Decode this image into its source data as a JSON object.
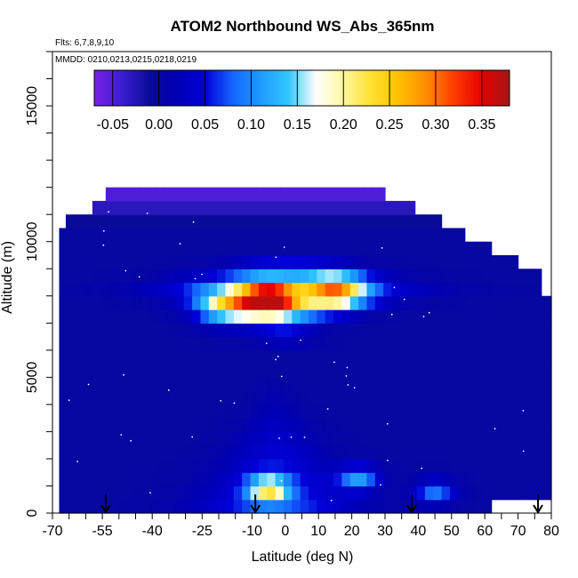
{
  "chart_data": {
    "type": "heatmap",
    "title": "ATOM2 Northbound WS_Abs_365nm",
    "flights_note": "Flts: 6,7,8,9,10",
    "dates_note": "MMDD: 0210,0213,0215,0218,0219",
    "xlabel": "Latitude (deg N)",
    "ylabel": "Altitude (m)",
    "xlim": [
      -70,
      80
    ],
    "ylim": [
      0,
      17000
    ],
    "x_ticks": [
      -70,
      -55,
      -40,
      -25,
      -10,
      0,
      10,
      20,
      30,
      40,
      50,
      60,
      70,
      80
    ],
    "y_ticks": [
      0,
      5000,
      10000,
      15000
    ],
    "colorbar": {
      "ticks": [
        -0.05,
        0.0,
        0.05,
        0.1,
        0.15,
        0.2,
        0.25,
        0.3,
        0.35
      ],
      "tick_labels": [
        "-0.05",
        "0.00",
        "0.05",
        "0.10",
        "0.15",
        "0.20",
        "0.25",
        "0.30",
        "0.35"
      ],
      "range": [
        -0.07,
        0.38
      ]
    },
    "colors": [
      "#7a1fe6",
      "#3a1fcf",
      "#0a0a99",
      "#0000b5",
      "#0000d8",
      "#1565ff",
      "#1e9bff",
      "#31c6ff",
      "#ffffff",
      "#fff7a0",
      "#ffe230",
      "#ffc000",
      "#ff8c00",
      "#ff3c00",
      "#e60000",
      "#a41616"
    ],
    "row_step_m": 500,
    "rows": [
      {
        "alt": 250,
        "lat_min": -68,
        "lat_max": 62,
        "base": 0.0
      },
      {
        "alt": 750,
        "lat_min": -68,
        "lat_max": 80,
        "base": 0.0
      },
      {
        "alt": 1250,
        "lat_min": -68,
        "lat_max": 80,
        "base": 0.0
      },
      {
        "alt": 1750,
        "lat_min": -68,
        "lat_max": 80,
        "base": 0.0
      },
      {
        "alt": 2250,
        "lat_min": -68,
        "lat_max": 80,
        "base": 0.0
      },
      {
        "alt": 2750,
        "lat_min": -68,
        "lat_max": 80,
        "base": 0.0
      },
      {
        "alt": 3250,
        "lat_min": -68,
        "lat_max": 80,
        "base": 0.0
      },
      {
        "alt": 3750,
        "lat_min": -68,
        "lat_max": 80,
        "base": 0.0
      },
      {
        "alt": 4250,
        "lat_min": -68,
        "lat_max": 80,
        "base": 0.0
      },
      {
        "alt": 4750,
        "lat_min": -68,
        "lat_max": 80,
        "base": 0.0
      },
      {
        "alt": 5250,
        "lat_min": -68,
        "lat_max": 80,
        "base": 0.0
      },
      {
        "alt": 5750,
        "lat_min": -68,
        "lat_max": 80,
        "base": 0.0
      },
      {
        "alt": 6250,
        "lat_min": -68,
        "lat_max": 80,
        "base": 0.0
      },
      {
        "alt": 6750,
        "lat_min": -68,
        "lat_max": 80,
        "base": 0.0
      },
      {
        "alt": 7250,
        "lat_min": -68,
        "lat_max": 80,
        "base": 0.0
      },
      {
        "alt": 7750,
        "lat_min": -68,
        "lat_max": 80,
        "base": 0.0
      },
      {
        "alt": 8250,
        "lat_min": -68,
        "lat_max": 77,
        "base": 0.0
      },
      {
        "alt": 8750,
        "lat_min": -68,
        "lat_max": 77,
        "base": 0.0
      },
      {
        "alt": 9250,
        "lat_min": -68,
        "lat_max": 70,
        "base": 0.0
      },
      {
        "alt": 9750,
        "lat_min": -68,
        "lat_max": 62,
        "base": 0.0
      },
      {
        "alt": 10250,
        "lat_min": -68,
        "lat_max": 54,
        "base": 0.0
      },
      {
        "alt": 10750,
        "lat_min": -66,
        "lat_max": 47,
        "base": -0.01
      },
      {
        "alt": 11250,
        "lat_min": -58,
        "lat_max": 39,
        "base": -0.03
      },
      {
        "alt": 11750,
        "lat_min": -54,
        "lat_max": 30,
        "base": -0.05
      }
    ],
    "features": [
      {
        "name": "upper-plume-core",
        "lat": -5,
        "alt": 7900,
        "peak": 0.36
      },
      {
        "name": "upper-plume-east",
        "lat": 15,
        "alt": 8200,
        "peak": 0.24
      },
      {
        "name": "upper-plume-west",
        "lat": -18,
        "alt": 7600,
        "peak": 0.18
      },
      {
        "name": "lower-plume-core",
        "lat": -5,
        "alt": 900,
        "peak": 0.2
      },
      {
        "name": "lower-plume-east",
        "lat": 22,
        "alt": 1300,
        "peak": 0.12
      },
      {
        "name": "lower-plume-far-east",
        "lat": 45,
        "alt": 800,
        "peak": 0.1
      }
    ],
    "flight_marker_latitudes": [
      -54,
      -9,
      38,
      76
    ]
  }
}
